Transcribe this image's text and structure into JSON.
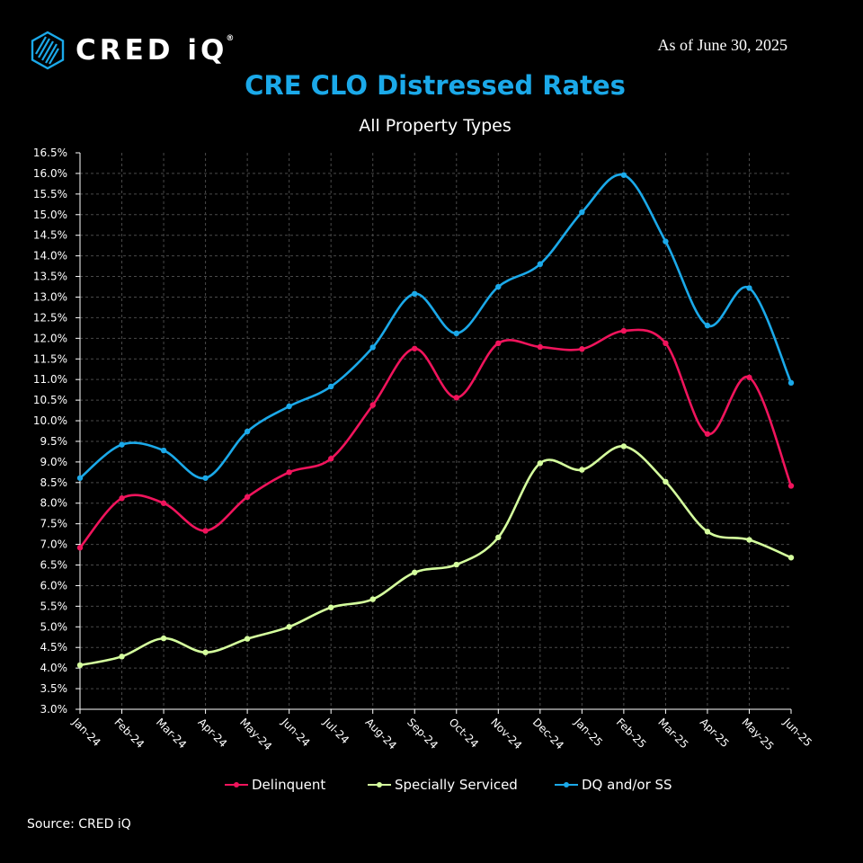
{
  "header": {
    "brand_name": "CRED iQ",
    "brand_mark": "®",
    "logo_icon": "hexagon-logo-icon",
    "as_of": "As of June 30, 2025",
    "source": "Source:  CRED iQ"
  },
  "colors": {
    "background": "#000000",
    "grid": "#4a4a4a",
    "title": "#1ba9e9",
    "delinquent": "#f0145c",
    "specially_serviced": "#d5ff9e",
    "dq_and_or_ss": "#1ba9e9"
  },
  "chart_data": {
    "type": "line",
    "title": "CRE CLO Distressed Rates",
    "subtitle": "All Property Types",
    "xlabel": "",
    "ylabel": "",
    "categories": [
      "Jan-24",
      "Feb-24",
      "Mar-24",
      "Apr-24",
      "May-24",
      "Jun-24",
      "Jul-24",
      "Aug-24",
      "Sep-24",
      "Oct-24",
      "Nov-24",
      "Dec-24",
      "Jan-25",
      "Feb-25",
      "Mar-25",
      "Apr-25",
      "May-25",
      "Jun-25"
    ],
    "ylim": [
      3.0,
      16.5
    ],
    "ytick_step": 0.5,
    "y_format": "percent_1dp",
    "grid": "dashed-both",
    "legend_position": "bottom-center",
    "smooth": true,
    "series": [
      {
        "name": "Delinquent",
        "color_key": "delinquent",
        "values": [
          6.92,
          8.12,
          8.0,
          7.33,
          8.15,
          8.75,
          9.08,
          10.38,
          11.75,
          10.56,
          11.88,
          11.79,
          11.74,
          12.18,
          11.88,
          9.68,
          11.05,
          8.42
        ]
      },
      {
        "name": "Specially Serviced",
        "color_key": "specially_serviced",
        "values": [
          4.07,
          4.28,
          4.72,
          4.38,
          4.71,
          5.0,
          5.47,
          5.67,
          6.32,
          6.51,
          7.17,
          8.97,
          8.81,
          9.38,
          8.52,
          7.31,
          7.11,
          6.68
        ]
      },
      {
        "name": "DQ and/or SS",
        "color_key": "dq_and_or_ss",
        "values": [
          8.61,
          9.42,
          9.28,
          8.61,
          9.74,
          10.35,
          10.83,
          11.78,
          13.08,
          12.12,
          13.25,
          13.8,
          15.06,
          15.96,
          14.35,
          12.31,
          13.22,
          10.92
        ]
      }
    ]
  }
}
